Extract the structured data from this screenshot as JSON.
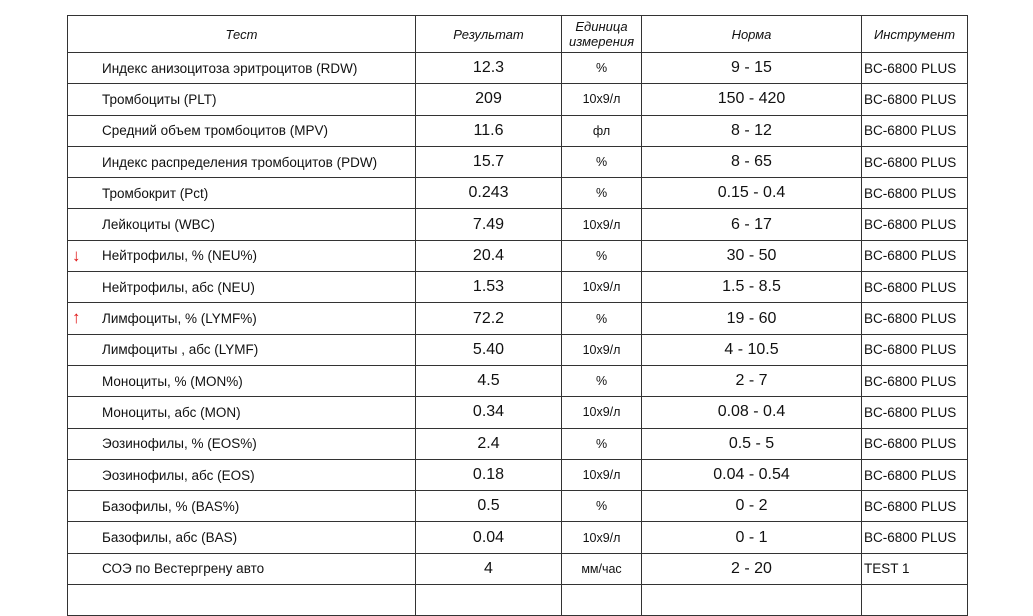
{
  "table": {
    "header": [
      "Тест",
      "Результат",
      "Единица измерения",
      "Норма",
      "Инструмент"
    ],
    "rows": [
      {
        "test": "Индекс анизоцитоза эритроцитов (RDW)",
        "result": "12.3",
        "unit": "%",
        "norm": "9 - 15",
        "instrument": "BC-6800 PLUS"
      },
      {
        "test": "Тромбоциты (PLT)",
        "result": "209",
        "unit": "10х9/л",
        "norm": "150 - 420",
        "instrument": "BC-6800 PLUS"
      },
      {
        "test": "Средний объем тромбоцитов (MPV)",
        "result": "11.6",
        "unit": "фл",
        "norm": "8 - 12",
        "instrument": "BC-6800 PLUS"
      },
      {
        "test": "Индекс распределения тромбоцитов (PDW)",
        "result": "15.7",
        "unit": "%",
        "norm": "8 - 65",
        "instrument": "BC-6800 PLUS"
      },
      {
        "test": "Тромбокрит (Pct)",
        "result": "0.243",
        "unit": "%",
        "norm": "0.15 - 0.4",
        "instrument": "BC-6800 PLUS"
      },
      {
        "test": "Лейкоциты (WBC)",
        "result": "7.49",
        "unit": "10х9/л",
        "norm": "6 - 17",
        "instrument": "BC-6800 PLUS"
      },
      {
        "flag": "↓",
        "test": "Нейтрофилы, % (NEU%)",
        "result": "20.4",
        "unit": "%",
        "norm": "30 - 50",
        "instrument": "BC-6800 PLUS"
      },
      {
        "test": "Нейтрофилы, абс (NEU)",
        "result": "1.53",
        "unit": "10х9/л",
        "norm": "1.5 - 8.5",
        "instrument": "BC-6800 PLUS"
      },
      {
        "flag": "↑",
        "test": "Лимфоциты, % (LYMF%)",
        "result": "72.2",
        "unit": "%",
        "norm": "19 - 60",
        "instrument": "BC-6800 PLUS"
      },
      {
        "test": "Лимфоциты , абс (LYMF)",
        "result": "5.40",
        "unit": "10х9/л",
        "norm": "4 - 10.5",
        "instrument": "BC-6800 PLUS"
      },
      {
        "test": "Моноциты, % (MON%)",
        "result": "4.5",
        "unit": "%",
        "norm": "2 - 7",
        "instrument": "BC-6800 PLUS"
      },
      {
        "test": "Моноциты, абс (MON)",
        "result": "0.34",
        "unit": "10х9/л",
        "norm": "0.08 - 0.4",
        "instrument": "BC-6800 PLUS"
      },
      {
        "test": "Эозинофилы, % (EOS%)",
        "result": "2.4",
        "unit": "%",
        "norm": "0.5 - 5",
        "instrument": "BC-6800 PLUS"
      },
      {
        "test": "Эозинофилы, абс (EOS)",
        "result": "0.18",
        "unit": "10х9/л",
        "norm": "0.04 - 0.54",
        "instrument": "BC-6800 PLUS"
      },
      {
        "test": "Базофилы, % (BAS%)",
        "result": "0.5",
        "unit": "%",
        "norm": "0 - 2",
        "instrument": "BC-6800 PLUS"
      },
      {
        "test": "Базофилы, абс (BAS)",
        "result": "0.04",
        "unit": "10х9/л",
        "norm": "0 - 1",
        "instrument": "BC-6800 PLUS"
      },
      {
        "test": "СОЭ по Вестергрену авто",
        "result": "4",
        "unit": "мм/час",
        "norm": "2 - 20",
        "instrument": "TEST 1"
      }
    ]
  }
}
